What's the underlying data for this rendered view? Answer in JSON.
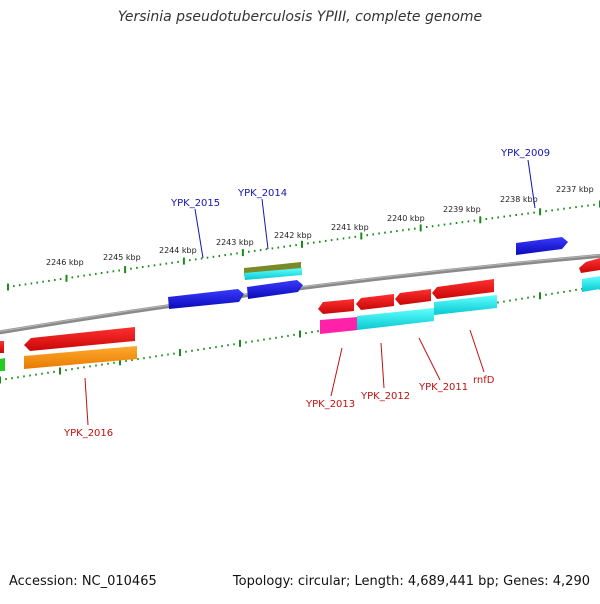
{
  "title": "Yersinia pseudotuberculosis YPIII, complete genome",
  "footer": {
    "accession": "Accession: NC_010465",
    "summary": "Topology: circular; Length: 4,689,441 bp; Genes: 4,290"
  },
  "colors": {
    "backbone": "#8c8c8c",
    "ticks": "#1a8a1a",
    "forward_label": "#1515b0",
    "reverse_label": "#c01010",
    "gene_red": "#ee1111",
    "gene_blue": "#1515e0",
    "gene_cyan": "#10e8ee",
    "gene_orange": "#ff9410",
    "gene_magenta": "#ff22a8",
    "gene_olive": "#7a8a28",
    "gene_green": "#22cc22"
  },
  "ruler": {
    "labels": [
      "2246 kbp",
      "2245 kbp",
      "2244 kbp",
      "2243 kbp",
      "2242 kbp",
      "2241 kbp",
      "2240 kbp",
      "2239 kbp",
      "2238 kbp",
      "2237 kbp"
    ]
  },
  "genes": {
    "forward": [
      {
        "label": "YPK_2015",
        "color": "#1515e0"
      },
      {
        "label": "YPK_2014",
        "color": "#1515e0"
      },
      {
        "label": "YPK_2009",
        "color": "#1515e0"
      }
    ],
    "reverse": [
      {
        "label": "YPK_2016",
        "color": "#ee1111"
      },
      {
        "label": "YPK_2013",
        "color": "#ee1111"
      },
      {
        "label": "YPK_2012",
        "color": "#ee1111"
      },
      {
        "label": "YPK_2011",
        "color": "#ee1111"
      },
      {
        "label": "rnfD",
        "color": "#ee1111"
      }
    ]
  }
}
